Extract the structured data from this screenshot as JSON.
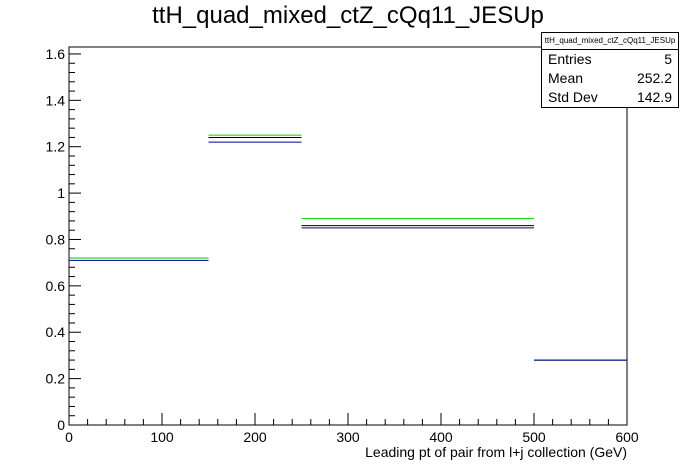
{
  "title": "ttH_quad_mixed_ctZ_cQq11_JESUp",
  "stats": {
    "name": "ttH_quad_mixed_ctZ_cQq11_JESUp",
    "rows": [
      {
        "label": "Entries",
        "value": "5"
      },
      {
        "label": "Mean",
        "value": "252.2"
      },
      {
        "label": "Std Dev",
        "value": "142.9"
      }
    ]
  },
  "chart_data": {
    "type": "histogram",
    "title": "ttH_quad_mixed_ctZ_cQq11_JESUp",
    "xlabel": "Leading pt of pair from l+j collection (GeV)",
    "ylabel": "",
    "xlim": [
      0,
      600
    ],
    "ylim": [
      0,
      1.63
    ],
    "x_ticks": [
      0,
      100,
      200,
      300,
      400,
      500,
      600
    ],
    "y_ticks": [
      0,
      0.2,
      0.4,
      0.6,
      0.8,
      1,
      1.2,
      1.4,
      1.6
    ],
    "bin_edges": [
      0,
      150,
      250,
      500,
      600
    ],
    "series": [
      {
        "color": "#000000",
        "values": [
          0.72,
          1.24,
          0.86,
          0.28
        ]
      },
      {
        "color": "#00cc00",
        "values": [
          0.72,
          1.25,
          0.89,
          0.28
        ]
      },
      {
        "color": "#000099",
        "values": [
          0.71,
          1.22,
          0.85,
          0.28
        ]
      }
    ],
    "grid": false
  }
}
